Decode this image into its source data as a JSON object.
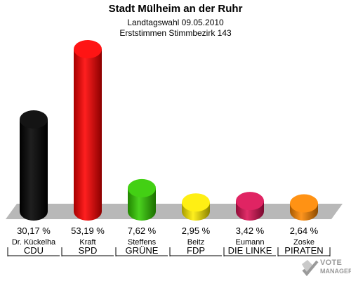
{
  "header": {
    "title": "Stadt Mülheim an der Ruhr",
    "subtitle1": "Landtagswahl 09.05.2010",
    "subtitle2": "Erststimmen Stimmbezirk 143"
  },
  "logo": {
    "line1": "VOTE",
    "line2": "MANAGER"
  },
  "chart_data": {
    "type": "bar",
    "title": "Stadt Mülheim an der Ruhr",
    "categories": [
      "CDU",
      "SPD",
      "GRÜNE",
      "FDP",
      "DIE LINKE",
      "PIRATEN"
    ],
    "candidates": [
      "Dr. Kückelha",
      "Kraft",
      "Steffens",
      "Beitz",
      "Eumann",
      "Zoske"
    ],
    "values": [
      30.17,
      53.19,
      7.62,
      2.95,
      3.42,
      2.64
    ],
    "value_labels": [
      "30,17 %",
      "53,19 %",
      "7,62 %",
      "2,95 %",
      "3,42 %",
      "2,64 %"
    ],
    "colors": [
      "#000000",
      "#ff0000",
      "#33cc00",
      "#ffee00",
      "#dd1155",
      "#ff8800"
    ],
    "ylim": [
      0,
      53.19
    ]
  }
}
